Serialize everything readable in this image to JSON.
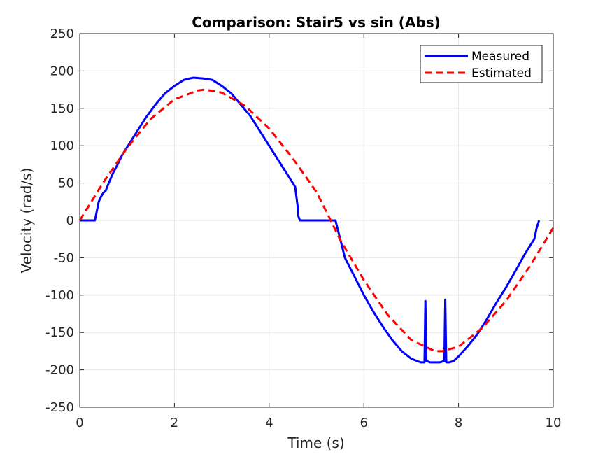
{
  "chart_data": {
    "type": "line",
    "title": "Comparison: Stair5 vs sin (Abs)",
    "xlabel": "Time (s)",
    "ylabel": "Velocity (rad/s)",
    "xlim": [
      0,
      10
    ],
    "ylim": [
      -250,
      250
    ],
    "xticks": [
      0,
      2,
      4,
      6,
      8,
      10
    ],
    "xtick_labels": [
      "0",
      "2",
      "4",
      "6",
      "8",
      "10"
    ],
    "yticks": [
      250,
      200,
      150,
      100,
      50,
      0,
      -50,
      -100,
      -150,
      -200,
      -250
    ],
    "ytick_labels": [
      "250",
      "200",
      "150",
      "100",
      "50",
      "0",
      "-50",
      "-100",
      "-150",
      "-200",
      "-250"
    ],
    "grid": true,
    "legend_position": "top-right",
    "series": [
      {
        "name": "Measured",
        "color": "#0000ff",
        "style": "solid",
        "x": [
          0.0,
          0.3,
          0.32,
          0.4,
          0.45,
          0.5,
          0.55,
          0.6,
          0.7,
          0.8,
          0.9,
          1.0,
          1.2,
          1.4,
          1.6,
          1.8,
          2.0,
          2.2,
          2.4,
          2.6,
          2.8,
          3.0,
          3.2,
          3.4,
          3.6,
          3.8,
          4.0,
          4.2,
          4.4,
          4.55,
          4.6,
          4.62,
          4.65,
          4.7,
          5.0,
          5.3,
          5.4,
          5.5,
          5.6,
          5.8,
          6.0,
          6.2,
          6.4,
          6.6,
          6.8,
          7.0,
          7.2,
          7.28,
          7.3,
          7.32,
          7.4,
          7.5,
          7.6,
          7.7,
          7.72,
          7.74,
          7.76,
          7.8,
          7.9,
          8.0,
          8.2,
          8.4,
          8.6,
          8.8,
          9.0,
          9.2,
          9.4,
          9.5,
          9.6,
          9.65,
          9.7
        ],
        "y": [
          0,
          0,
          0,
          25,
          32,
          37,
          40,
          48,
          63,
          75,
          88,
          98,
          118,
          138,
          155,
          170,
          180,
          188,
          191,
          190,
          188,
          180,
          170,
          155,
          140,
          120,
          100,
          80,
          60,
          45,
          20,
          5,
          0,
          0,
          0,
          0,
          0,
          -25,
          -50,
          -75,
          -100,
          -122,
          -142,
          -160,
          -175,
          -185,
          -190,
          -190,
          -108,
          -188,
          -190,
          -190,
          -190,
          -188,
          -106,
          -190,
          -190,
          -190,
          -188,
          -182,
          -168,
          -152,
          -132,
          -110,
          -90,
          -68,
          -45,
          -35,
          -25,
          -10,
          0
        ]
      },
      {
        "name": "Estimated",
        "color": "#ff0000",
        "style": "dashed",
        "x": [
          0.0,
          0.5,
          1.0,
          1.5,
          2.0,
          2.5,
          2.65,
          3.0,
          3.5,
          4.0,
          4.5,
          5.0,
          5.3,
          5.5,
          6.0,
          6.5,
          7.0,
          7.5,
          7.65,
          8.0,
          8.5,
          9.0,
          9.5,
          10.0
        ],
        "y": [
          0,
          51,
          97,
          136,
          162,
          174,
          175,
          171,
          153,
          123,
          83,
          38,
          0,
          -26,
          -80,
          -126,
          -160,
          -175,
          -175,
          -169,
          -144,
          -108,
          -62,
          -10
        ]
      }
    ]
  }
}
